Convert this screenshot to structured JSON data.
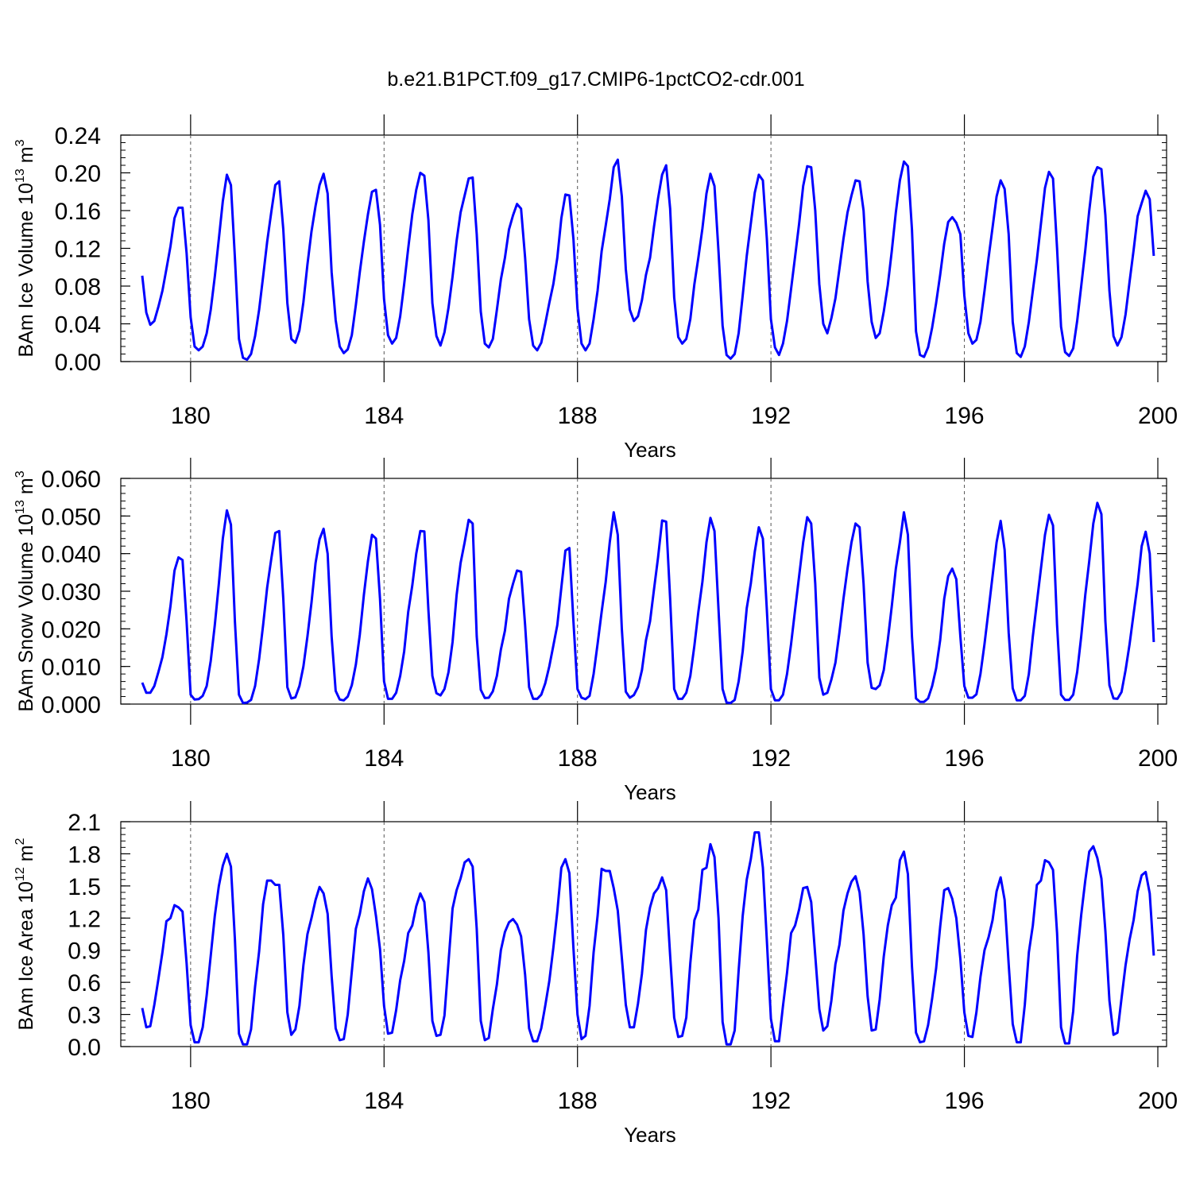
{
  "figure": {
    "title": "b.e21.B1PCT.f09_g17.CMIP6-1pctCO2-cdr.001"
  },
  "chart_data": [
    {
      "type": "line",
      "title": "",
      "xlabel": "Years",
      "ylabel": "BAm Ice Volume 10",
      "ylabel_exp": "13",
      "ylabel_unit": " m",
      "ylabel_unit_exp": "3",
      "xlim": [
        179.0,
        200.0
      ],
      "ylim": [
        0.0,
        0.24
      ],
      "xticks": [
        180,
        184,
        188,
        192,
        196,
        200
      ],
      "xtick_labels": [
        "180",
        "184",
        "188",
        "192",
        "196",
        "200"
      ],
      "yticks": [
        0.0,
        0.04,
        0.08,
        0.12,
        0.16,
        0.2,
        0.24
      ],
      "ytick_labels": [
        "0.00",
        "0.04",
        "0.08",
        "0.12",
        "0.16",
        "0.20",
        "0.24"
      ],
      "year_gridlines": [
        180,
        184,
        188,
        192,
        196
      ],
      "line_color": "#0000ff",
      "series": [
        {
          "x_start": 179.0,
          "x_step": 0.08333,
          "values": [
            0.091,
            0.052,
            0.039,
            0.043,
            0.058,
            0.075,
            0.098,
            0.122,
            0.152,
            0.163,
            0.163,
            0.115,
            0.047,
            0.016,
            0.012,
            0.016,
            0.03,
            0.055,
            0.09,
            0.13,
            0.17,
            0.198,
            0.187,
            0.11,
            0.024,
            0.004,
            0.002,
            0.008,
            0.027,
            0.055,
            0.09,
            0.127,
            0.158,
            0.187,
            0.191,
            0.14,
            0.062,
            0.024,
            0.02,
            0.033,
            0.063,
            0.103,
            0.138,
            0.165,
            0.187,
            0.199,
            0.178,
            0.095,
            0.044,
            0.016,
            0.009,
            0.013,
            0.028,
            0.06,
            0.095,
            0.127,
            0.156,
            0.18,
            0.182,
            0.145,
            0.066,
            0.028,
            0.019,
            0.025,
            0.048,
            0.082,
            0.12,
            0.156,
            0.182,
            0.2,
            0.197,
            0.15,
            0.062,
            0.027,
            0.017,
            0.031,
            0.057,
            0.09,
            0.128,
            0.158,
            0.176,
            0.194,
            0.195,
            0.135,
            0.053,
            0.019,
            0.015,
            0.024,
            0.055,
            0.087,
            0.11,
            0.14,
            0.155,
            0.167,
            0.162,
            0.11,
            0.045,
            0.017,
            0.012,
            0.02,
            0.04,
            0.062,
            0.082,
            0.11,
            0.152,
            0.177,
            0.176,
            0.13,
            0.056,
            0.019,
            0.012,
            0.019,
            0.045,
            0.075,
            0.117,
            0.144,
            0.172,
            0.206,
            0.214,
            0.175,
            0.098,
            0.055,
            0.043,
            0.048,
            0.065,
            0.092,
            0.11,
            0.143,
            0.173,
            0.198,
            0.208,
            0.162,
            0.068,
            0.026,
            0.019,
            0.024,
            0.045,
            0.082,
            0.11,
            0.141,
            0.178,
            0.199,
            0.186,
            0.116,
            0.038,
            0.007,
            0.003,
            0.008,
            0.03,
            0.07,
            0.112,
            0.146,
            0.179,
            0.198,
            0.192,
            0.13,
            0.045,
            0.015,
            0.007,
            0.019,
            0.043,
            0.077,
            0.111,
            0.146,
            0.186,
            0.207,
            0.206,
            0.16,
            0.082,
            0.04,
            0.03,
            0.046,
            0.067,
            0.098,
            0.13,
            0.158,
            0.176,
            0.192,
            0.191,
            0.16,
            0.085,
            0.042,
            0.025,
            0.03,
            0.053,
            0.081,
            0.117,
            0.158,
            0.192,
            0.212,
            0.207,
            0.14,
            0.032,
            0.007,
            0.005,
            0.015,
            0.036,
            0.062,
            0.092,
            0.125,
            0.148,
            0.153,
            0.147,
            0.135,
            0.07,
            0.03,
            0.019,
            0.023,
            0.042,
            0.075,
            0.11,
            0.142,
            0.175,
            0.192,
            0.183,
            0.135,
            0.042,
            0.009,
            0.005,
            0.016,
            0.042,
            0.075,
            0.108,
            0.146,
            0.184,
            0.201,
            0.194,
            0.12,
            0.037,
            0.01,
            0.006,
            0.014,
            0.043,
            0.08,
            0.118,
            0.16,
            0.196,
            0.206,
            0.204,
            0.155,
            0.075,
            0.027,
            0.017,
            0.026,
            0.05,
            0.085,
            0.118,
            0.154,
            0.168,
            0.181,
            0.172,
            0.112
          ]
        }
      ]
    },
    {
      "type": "line",
      "title": "",
      "xlabel": "Years",
      "ylabel": "BAm Snow Volume 10",
      "ylabel_exp": "13",
      "ylabel_unit": " m",
      "ylabel_unit_exp": "3",
      "xlim": [
        179.0,
        200.0
      ],
      "ylim": [
        0.0,
        0.06
      ],
      "xticks": [
        180,
        184,
        188,
        192,
        196,
        200
      ],
      "xtick_labels": [
        "180",
        "184",
        "188",
        "192",
        "196",
        "200"
      ],
      "yticks": [
        0.0,
        0.01,
        0.02,
        0.03,
        0.04,
        0.05,
        0.06
      ],
      "ytick_labels": [
        "0.000",
        "0.010",
        "0.020",
        "0.030",
        "0.040",
        "0.050",
        "0.060"
      ],
      "year_gridlines": [
        180,
        184,
        188,
        192,
        196
      ],
      "line_color": "#0000ff",
      "series": [
        {
          "x_start": 179.0,
          "x_step": 0.08333,
          "values": [
            0.0057,
            0.003,
            0.003,
            0.0048,
            0.0085,
            0.0125,
            0.0185,
            0.026,
            0.0355,
            0.039,
            0.0383,
            0.022,
            0.0025,
            0.0012,
            0.0013,
            0.0022,
            0.0048,
            0.0115,
            0.021,
            0.032,
            0.044,
            0.0515,
            0.0477,
            0.022,
            0.0025,
            0.0003,
            0.0004,
            0.0011,
            0.0048,
            0.012,
            0.021,
            0.031,
            0.0385,
            0.0455,
            0.046,
            0.028,
            0.0045,
            0.0015,
            0.0018,
            0.0048,
            0.01,
            0.018,
            0.027,
            0.0375,
            0.0438,
            0.0466,
            0.04,
            0.018,
            0.0035,
            0.0012,
            0.001,
            0.002,
            0.005,
            0.0105,
            0.0185,
            0.029,
            0.038,
            0.045,
            0.044,
            0.028,
            0.006,
            0.0014,
            0.0014,
            0.003,
            0.0075,
            0.014,
            0.0245,
            0.0315,
            0.04,
            0.046,
            0.0459,
            0.025,
            0.0075,
            0.0029,
            0.0023,
            0.004,
            0.0085,
            0.0165,
            0.029,
            0.0375,
            0.043,
            0.049,
            0.048,
            0.018,
            0.0038,
            0.0016,
            0.0017,
            0.0034,
            0.0075,
            0.0145,
            0.0195,
            0.028,
            0.032,
            0.0355,
            0.0352,
            0.021,
            0.0045,
            0.0014,
            0.0014,
            0.0025,
            0.0055,
            0.01,
            0.0155,
            0.021,
            0.031,
            0.0408,
            0.0415,
            0.022,
            0.004,
            0.0017,
            0.0013,
            0.0022,
            0.008,
            0.016,
            0.0245,
            0.0325,
            0.043,
            0.051,
            0.045,
            0.02,
            0.0033,
            0.0017,
            0.0024,
            0.0045,
            0.009,
            0.017,
            0.022,
            0.0305,
            0.039,
            0.0488,
            0.0485,
            0.028,
            0.004,
            0.0014,
            0.0014,
            0.003,
            0.0075,
            0.0155,
            0.0245,
            0.0325,
            0.043,
            0.0495,
            0.046,
            0.025,
            0.004,
            0.0004,
            0.0003,
            0.0011,
            0.006,
            0.014,
            0.0255,
            0.032,
            0.0405,
            0.047,
            0.044,
            0.025,
            0.004,
            0.001,
            0.001,
            0.0025,
            0.008,
            0.016,
            0.025,
            0.034,
            0.043,
            0.0497,
            0.048,
            0.032,
            0.007,
            0.0025,
            0.003,
            0.0065,
            0.011,
            0.019,
            0.028,
            0.036,
            0.043,
            0.048,
            0.047,
            0.032,
            0.011,
            0.0043,
            0.004,
            0.005,
            0.009,
            0.017,
            0.026,
            0.036,
            0.043,
            0.051,
            0.045,
            0.018,
            0.0015,
            0.0006,
            0.0006,
            0.0015,
            0.0048,
            0.0095,
            0.017,
            0.028,
            0.034,
            0.036,
            0.0332,
            0.018,
            0.0048,
            0.0017,
            0.0017,
            0.0026,
            0.008,
            0.016,
            0.025,
            0.034,
            0.043,
            0.0487,
            0.041,
            0.019,
            0.0042,
            0.001,
            0.001,
            0.0022,
            0.008,
            0.018,
            0.027,
            0.036,
            0.045,
            0.0503,
            0.0475,
            0.021,
            0.0025,
            0.0011,
            0.0011,
            0.0025,
            0.0085,
            0.018,
            0.029,
            0.038,
            0.048,
            0.0535,
            0.0505,
            0.022,
            0.005,
            0.0015,
            0.0014,
            0.0032,
            0.009,
            0.016,
            0.024,
            0.032,
            0.042,
            0.0458,
            0.04,
            0.0165
          ]
        }
      ]
    },
    {
      "type": "line",
      "title": "",
      "xlabel": "Years",
      "ylabel": "BAm Ice Area 10",
      "ylabel_exp": "12",
      "ylabel_unit": " m",
      "ylabel_unit_exp": "2",
      "xlim": [
        179.0,
        200.0
      ],
      "ylim": [
        0.0,
        2.1
      ],
      "xticks": [
        180,
        184,
        188,
        192,
        196,
        200
      ],
      "xtick_labels": [
        "180",
        "184",
        "188",
        "192",
        "196",
        "200"
      ],
      "yticks": [
        0.0,
        0.3,
        0.6,
        0.9,
        1.2,
        1.5,
        1.8,
        2.1
      ],
      "ytick_labels": [
        "0.0",
        "0.3",
        "0.6",
        "0.9",
        "1.2",
        "1.5",
        "1.8",
        "2.1"
      ],
      "year_gridlines": [
        180,
        184,
        188,
        192,
        196
      ],
      "line_color": "#0000ff",
      "series": [
        {
          "x_start": 179.0,
          "x_step": 0.08333,
          "values": [
            0.36,
            0.18,
            0.19,
            0.39,
            0.63,
            0.88,
            1.17,
            1.2,
            1.32,
            1.3,
            1.26,
            0.78,
            0.2,
            0.04,
            0.04,
            0.18,
            0.48,
            0.85,
            1.22,
            1.5,
            1.69,
            1.8,
            1.68,
            1.0,
            0.12,
            0.02,
            0.02,
            0.16,
            0.56,
            0.89,
            1.33,
            1.55,
            1.55,
            1.51,
            1.51,
            1.04,
            0.32,
            0.11,
            0.16,
            0.38,
            0.76,
            1.05,
            1.2,
            1.37,
            1.49,
            1.43,
            1.24,
            0.66,
            0.17,
            0.06,
            0.07,
            0.3,
            0.7,
            1.1,
            1.24,
            1.45,
            1.57,
            1.47,
            1.22,
            0.91,
            0.38,
            0.12,
            0.13,
            0.34,
            0.62,
            0.8,
            1.06,
            1.13,
            1.31,
            1.43,
            1.35,
            0.88,
            0.24,
            0.1,
            0.11,
            0.29,
            0.79,
            1.29,
            1.46,
            1.57,
            1.72,
            1.75,
            1.68,
            1.1,
            0.24,
            0.06,
            0.08,
            0.35,
            0.58,
            0.9,
            1.07,
            1.16,
            1.19,
            1.14,
            1.03,
            0.67,
            0.17,
            0.05,
            0.05,
            0.17,
            0.38,
            0.61,
            0.92,
            1.26,
            1.67,
            1.75,
            1.62,
            0.92,
            0.3,
            0.07,
            0.1,
            0.38,
            0.88,
            1.22,
            1.66,
            1.64,
            1.64,
            1.48,
            1.27,
            0.83,
            0.39,
            0.18,
            0.18,
            0.4,
            0.68,
            1.09,
            1.3,
            1.43,
            1.48,
            1.58,
            1.46,
            0.85,
            0.27,
            0.09,
            0.1,
            0.27,
            0.78,
            1.18,
            1.28,
            1.65,
            1.67,
            1.89,
            1.77,
            1.2,
            0.23,
            0.02,
            0.02,
            0.15,
            0.71,
            1.22,
            1.56,
            1.75,
            2.0,
            2.0,
            1.67,
            0.99,
            0.26,
            0.05,
            0.05,
            0.38,
            0.69,
            1.06,
            1.13,
            1.28,
            1.48,
            1.49,
            1.35,
            0.85,
            0.35,
            0.15,
            0.19,
            0.43,
            0.77,
            0.95,
            1.27,
            1.43,
            1.54,
            1.59,
            1.44,
            1.05,
            0.47,
            0.15,
            0.16,
            0.44,
            0.84,
            1.13,
            1.32,
            1.39,
            1.74,
            1.82,
            1.61,
            0.75,
            0.13,
            0.04,
            0.05,
            0.2,
            0.45,
            0.73,
            1.12,
            1.46,
            1.48,
            1.38,
            1.2,
            0.82,
            0.32,
            0.1,
            0.09,
            0.32,
            0.65,
            0.9,
            1.02,
            1.18,
            1.45,
            1.58,
            1.37,
            0.77,
            0.21,
            0.04,
            0.04,
            0.39,
            0.88,
            1.13,
            1.51,
            1.55,
            1.74,
            1.72,
            1.65,
            1.06,
            0.18,
            0.03,
            0.03,
            0.33,
            0.85,
            1.23,
            1.55,
            1.82,
            1.87,
            1.76,
            1.57,
            1.08,
            0.43,
            0.11,
            0.13,
            0.45,
            0.76,
            1.0,
            1.18,
            1.45,
            1.6,
            1.63,
            1.43,
            0.85
          ]
        }
      ]
    }
  ]
}
